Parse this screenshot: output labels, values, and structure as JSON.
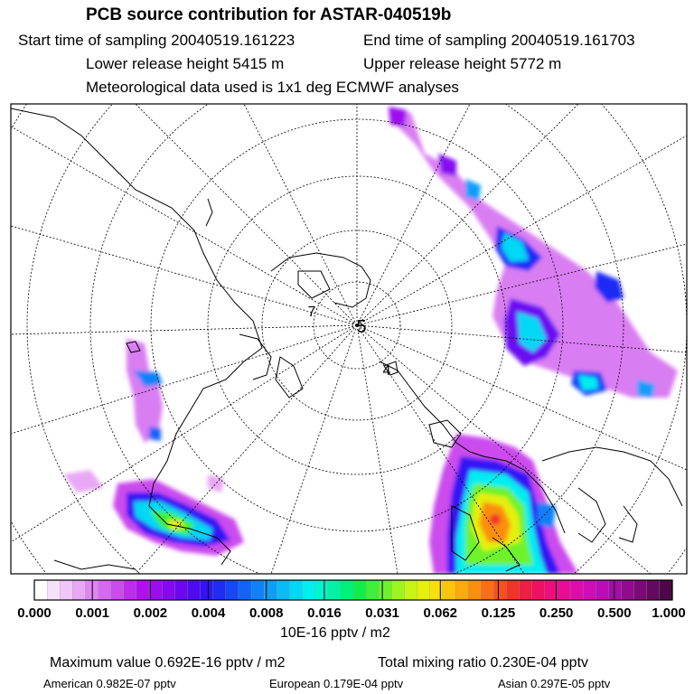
{
  "header": {
    "title": "PCB source contribution for ASTAR-040519b",
    "start": "Start time of sampling 20040519.161223",
    "end": "End time of sampling 20040519.161703",
    "lower": "Lower release height 5415 m",
    "upper": "Upper release height 5772 m",
    "met": "Meteorological data used is 1x1 deg ECMWF analyses"
  },
  "map_labels": {
    "center": "5",
    "label_a": "7",
    "label_b": "4"
  },
  "colorbar": {
    "ticks": [
      "0.000",
      "0.001",
      "0.002",
      "0.004",
      "0.008",
      "0.016",
      "0.031",
      "0.062",
      "0.125",
      "0.250",
      "0.500",
      "1.000"
    ],
    "units": "10E-16 pptv / m2",
    "colors": [
      "#ffffff",
      "#f6e0fb",
      "#f0c7f8",
      "#e8a8f5",
      "#de86f2",
      "#d56af0",
      "#cb4cee",
      "#bf2cee",
      "#b10fee",
      "#9d0cf0",
      "#8509f0",
      "#6a08f2",
      "#4f0af4",
      "#3313f5",
      "#1e2cf5",
      "#1646f7",
      "#1263f8",
      "#0f82f9",
      "#0a9ff9",
      "#08bcf8",
      "#00d8f4",
      "#00eef0",
      "#00f5cf",
      "#00f3a3",
      "#00f07a",
      "#11ee4c",
      "#3ff038",
      "#6ef22a",
      "#9df51e",
      "#c6f514",
      "#e6f00a",
      "#f8e00a",
      "#fbc60a",
      "#fbab0a",
      "#fb8f0c",
      "#fa6f14",
      "#f6501e",
      "#f23328",
      "#f01d45",
      "#f01061",
      "#ef0d7e",
      "#ea0c97",
      "#e00ca9",
      "#d00cb5",
      "#bc0cb5",
      "#a70ca6",
      "#900c8e",
      "#7a0a75",
      "#640a5e",
      "#4d0847"
    ]
  },
  "stats": {
    "max": "Maximum value  0.692E-16 pptv / m2",
    "total": "Total mixing ratio  0.230E-04 pptv",
    "american": "American  0.982E-07 pptv",
    "european": "European  0.179E-04 pptv",
    "asian": "Asian  0.297E-05 pptv"
  }
}
